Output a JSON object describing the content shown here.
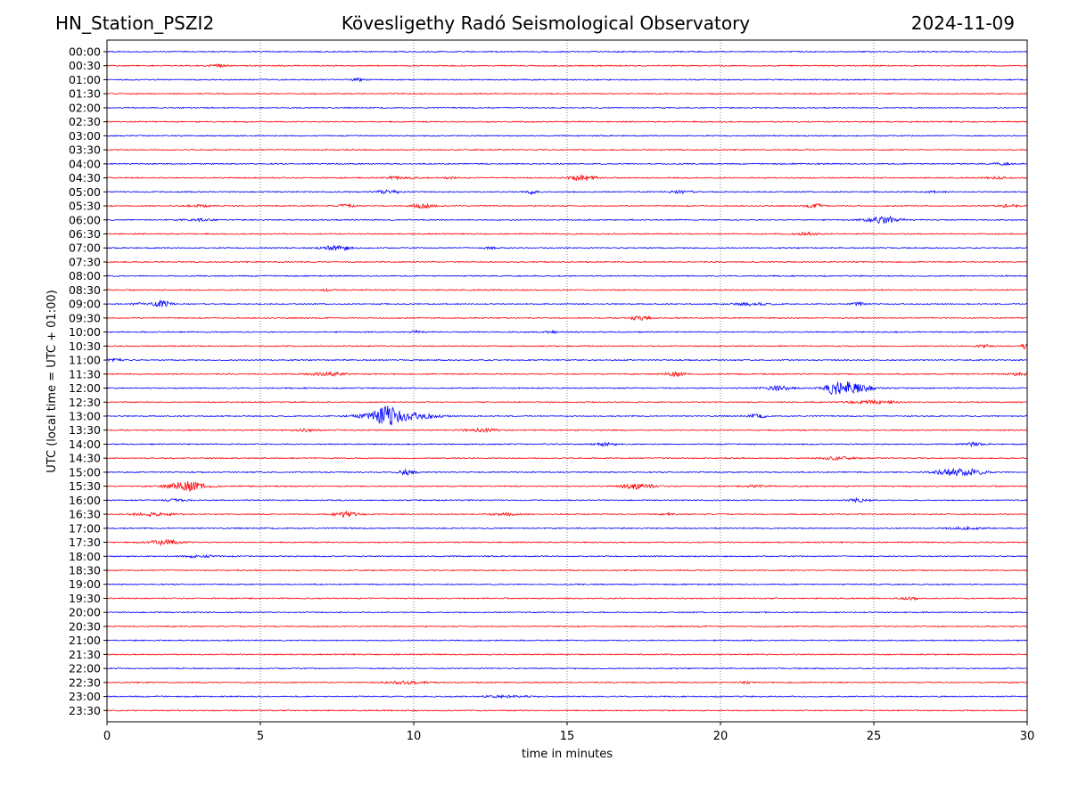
{
  "header": {
    "station": "HN_Station_PSZI2",
    "observatory": "Kövesligethy Radó Seismological Observatory",
    "date": "2024-11-09"
  },
  "chart_data": {
    "type": "line",
    "subtype": "helicorder",
    "title": "Kövesligethy Radó Seismological Observatory",
    "xlabel": "time in minutes",
    "ylabel": "UTC (local time = UTC + 01:00)",
    "xlim": [
      0,
      30
    ],
    "xticks": [
      "0",
      "5",
      "10",
      "15",
      "20",
      "25",
      "30"
    ],
    "grid": "vertical dotted lines at every 5 minutes",
    "colors": {
      "even_trace": "#0000ff",
      "odd_trace": "#ff0000",
      "axis": "#000000",
      "grid": "#555555"
    },
    "noise_amplitude": 0.07,
    "traces": [
      {
        "label": "00:00",
        "events": []
      },
      {
        "label": "00:30",
        "events": [
          {
            "t": 3.6,
            "amp": 0.12,
            "dur": 0.6
          }
        ]
      },
      {
        "label": "01:00",
        "events": [
          {
            "t": 8.2,
            "amp": 0.15,
            "dur": 0.5
          }
        ]
      },
      {
        "label": "01:30",
        "events": []
      },
      {
        "label": "02:00",
        "events": []
      },
      {
        "label": "02:30",
        "events": []
      },
      {
        "label": "03:00",
        "events": []
      },
      {
        "label": "03:30",
        "events": []
      },
      {
        "label": "04:00",
        "events": [
          {
            "t": 29.2,
            "amp": 0.12,
            "dur": 0.6
          }
        ]
      },
      {
        "label": "04:30",
        "events": [
          {
            "t": 9.5,
            "amp": 0.12,
            "dur": 1.0
          },
          {
            "t": 11.2,
            "amp": 0.1,
            "dur": 0.4
          },
          {
            "t": 15.5,
            "amp": 0.32,
            "dur": 0.8
          },
          {
            "t": 29.0,
            "amp": 0.12,
            "dur": 0.6
          }
        ]
      },
      {
        "label": "05:00",
        "events": [
          {
            "t": 9.2,
            "amp": 0.25,
            "dur": 0.7
          },
          {
            "t": 13.8,
            "amp": 0.25,
            "dur": 0.4
          },
          {
            "t": 18.7,
            "amp": 0.15,
            "dur": 0.8
          },
          {
            "t": 27.0,
            "amp": 0.1,
            "dur": 0.6
          }
        ]
      },
      {
        "label": "05:30",
        "events": [
          {
            "t": 3.0,
            "amp": 0.12,
            "dur": 0.8
          },
          {
            "t": 7.8,
            "amp": 0.15,
            "dur": 0.6
          },
          {
            "t": 10.3,
            "amp": 0.25,
            "dur": 0.7
          },
          {
            "t": 23.1,
            "amp": 0.2,
            "dur": 0.6
          },
          {
            "t": 29.4,
            "amp": 0.22,
            "dur": 0.6
          }
        ]
      },
      {
        "label": "06:00",
        "events": [
          {
            "t": 3.0,
            "amp": 0.12,
            "dur": 1.0
          },
          {
            "t": 25.3,
            "amp": 0.45,
            "dur": 1.0
          }
        ]
      },
      {
        "label": "06:30",
        "events": [
          {
            "t": 22.8,
            "amp": 0.15,
            "dur": 0.8
          }
        ]
      },
      {
        "label": "07:00",
        "events": [
          {
            "t": 7.5,
            "amp": 0.3,
            "dur": 0.9
          },
          {
            "t": 12.5,
            "amp": 0.1,
            "dur": 0.5
          }
        ]
      },
      {
        "label": "07:30",
        "events": []
      },
      {
        "label": "08:00",
        "events": []
      },
      {
        "label": "08:30",
        "events": [
          {
            "t": 7.2,
            "amp": 0.12,
            "dur": 0.4
          }
        ]
      },
      {
        "label": "09:00",
        "events": [
          {
            "t": 1.0,
            "amp": 0.15,
            "dur": 0.4
          },
          {
            "t": 1.8,
            "amp": 0.38,
            "dur": 0.6
          },
          {
            "t": 21.0,
            "amp": 0.15,
            "dur": 1.2
          },
          {
            "t": 24.5,
            "amp": 0.2,
            "dur": 0.4
          }
        ]
      },
      {
        "label": "09:30",
        "events": [
          {
            "t": 17.4,
            "amp": 0.22,
            "dur": 0.7
          }
        ]
      },
      {
        "label": "10:00",
        "events": [
          {
            "t": 10.1,
            "amp": 0.12,
            "dur": 0.5
          },
          {
            "t": 14.5,
            "amp": 0.1,
            "dur": 0.6
          }
        ]
      },
      {
        "label": "10:30",
        "events": [
          {
            "t": 28.6,
            "amp": 0.15,
            "dur": 0.6
          },
          {
            "t": 29.9,
            "amp": 0.3,
            "dur": 0.2
          }
        ]
      },
      {
        "label": "11:00",
        "events": [
          {
            "t": 0.3,
            "amp": 0.2,
            "dur": 0.5
          }
        ]
      },
      {
        "label": "11:30",
        "events": [
          {
            "t": 7.2,
            "amp": 0.2,
            "dur": 1.2
          },
          {
            "t": 18.5,
            "amp": 0.25,
            "dur": 0.6
          },
          {
            "t": 29.7,
            "amp": 0.25,
            "dur": 0.5
          }
        ]
      },
      {
        "label": "12:00",
        "events": [
          {
            "t": 21.9,
            "amp": 0.22,
            "dur": 1.0
          },
          {
            "t": 23.7,
            "amp": 0.45,
            "dur": 0.4
          },
          {
            "t": 24.2,
            "amp": 0.85,
            "dur": 1.2
          }
        ]
      },
      {
        "label": "12:30",
        "events": [
          {
            "t": 25.0,
            "amp": 0.2,
            "dur": 1.6
          }
        ]
      },
      {
        "label": "13:00",
        "events": [
          {
            "t": 9.1,
            "amp": 0.9,
            "dur": 0.6
          },
          {
            "t": 9.4,
            "amp": 0.55,
            "dur": 2.2
          },
          {
            "t": 21.2,
            "amp": 0.2,
            "dur": 0.6
          }
        ]
      },
      {
        "label": "13:30",
        "events": [
          {
            "t": 6.5,
            "amp": 0.15,
            "dur": 0.6
          },
          {
            "t": 12.2,
            "amp": 0.18,
            "dur": 1.2
          }
        ]
      },
      {
        "label": "14:00",
        "events": [
          {
            "t": 16.2,
            "amp": 0.15,
            "dur": 0.7
          },
          {
            "t": 28.2,
            "amp": 0.18,
            "dur": 0.6
          }
        ]
      },
      {
        "label": "14:30",
        "events": [
          {
            "t": 23.8,
            "amp": 0.15,
            "dur": 1.0
          }
        ]
      },
      {
        "label": "15:00",
        "events": [
          {
            "t": 9.8,
            "amp": 0.3,
            "dur": 0.6
          },
          {
            "t": 27.8,
            "amp": 0.5,
            "dur": 1.4
          }
        ]
      },
      {
        "label": "15:30",
        "events": [
          {
            "t": 2.6,
            "amp": 0.55,
            "dur": 1.2
          },
          {
            "t": 17.3,
            "amp": 0.32,
            "dur": 1.0
          },
          {
            "t": 21.2,
            "amp": 0.12,
            "dur": 0.6
          }
        ]
      },
      {
        "label": "16:00",
        "events": [
          {
            "t": 2.2,
            "amp": 0.12,
            "dur": 0.8
          },
          {
            "t": 24.5,
            "amp": 0.2,
            "dur": 0.8
          }
        ]
      },
      {
        "label": "16:30",
        "events": [
          {
            "t": 1.5,
            "amp": 0.18,
            "dur": 1.4
          },
          {
            "t": 7.8,
            "amp": 0.35,
            "dur": 0.7
          },
          {
            "t": 13.0,
            "amp": 0.15,
            "dur": 0.8
          },
          {
            "t": 18.3,
            "amp": 0.12,
            "dur": 0.4
          }
        ]
      },
      {
        "label": "17:00",
        "events": [
          {
            "t": 28.0,
            "amp": 0.12,
            "dur": 1.2
          }
        ]
      },
      {
        "label": "17:30",
        "events": [
          {
            "t": 1.9,
            "amp": 0.28,
            "dur": 1.1
          }
        ]
      },
      {
        "label": "18:00",
        "events": [
          {
            "t": 3.0,
            "amp": 0.15,
            "dur": 1.0
          }
        ]
      },
      {
        "label": "18:30",
        "events": []
      },
      {
        "label": "19:00",
        "events": []
      },
      {
        "label": "19:30",
        "events": [
          {
            "t": 26.2,
            "amp": 0.15,
            "dur": 0.5
          }
        ]
      },
      {
        "label": "20:00",
        "events": []
      },
      {
        "label": "20:30",
        "events": []
      },
      {
        "label": "21:00",
        "events": []
      },
      {
        "label": "21:30",
        "events": []
      },
      {
        "label": "22:00",
        "events": []
      },
      {
        "label": "22:30",
        "events": [
          {
            "t": 9.8,
            "amp": 0.18,
            "dur": 1.2
          },
          {
            "t": 20.8,
            "amp": 0.1,
            "dur": 0.4
          }
        ]
      },
      {
        "label": "23:00",
        "events": [
          {
            "t": 13.0,
            "amp": 0.12,
            "dur": 1.6
          }
        ]
      },
      {
        "label": "23:30",
        "events": []
      }
    ]
  }
}
